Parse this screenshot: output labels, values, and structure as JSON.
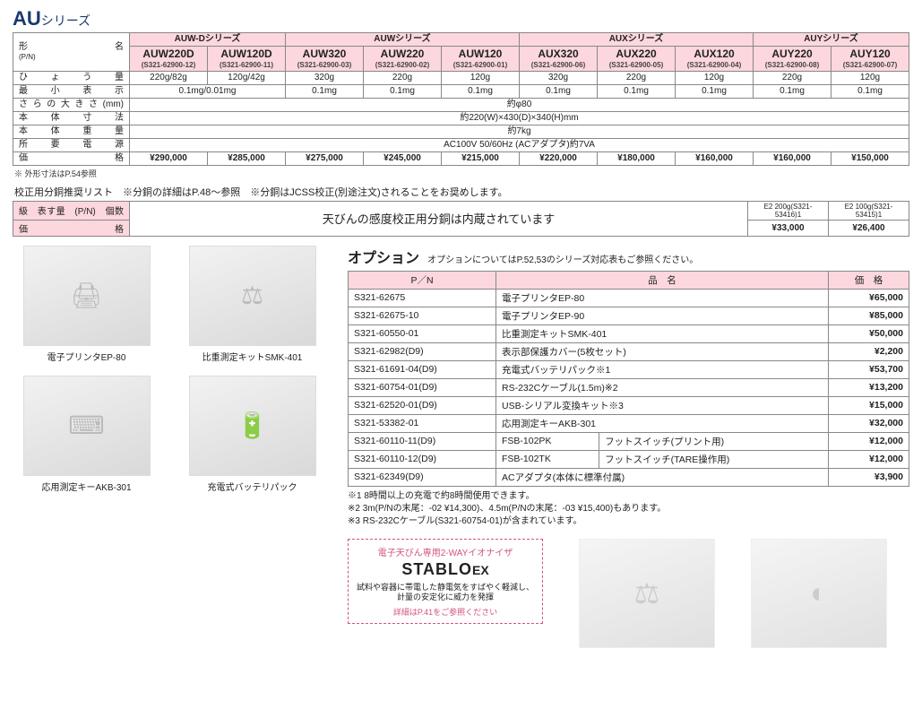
{
  "title": {
    "prefix": "AU",
    "suffix": "シリーズ"
  },
  "spec_table": {
    "row_label_col_width": 130,
    "groups": [
      {
        "label": "AUW-Dシリーズ",
        "span": 2
      },
      {
        "label": "AUWシリーズ",
        "span": 3
      },
      {
        "label": "AUXシリーズ",
        "span": 3
      },
      {
        "label": "AUYシリーズ",
        "span": 2
      }
    ],
    "model_row_label": "形　　　　　名",
    "model_pn_label": "(P/N)",
    "models": [
      {
        "name": "AUW220D",
        "pn": "(S321-62900-12)"
      },
      {
        "name": "AUW120D",
        "pn": "(S321-62900-11)"
      },
      {
        "name": "AUW320",
        "pn": "(S321-62900-03)"
      },
      {
        "name": "AUW220",
        "pn": "(S321-62900-02)"
      },
      {
        "name": "AUW120",
        "pn": "(S321-62900-01)"
      },
      {
        "name": "AUX320",
        "pn": "(S321-62900-06)"
      },
      {
        "name": "AUX220",
        "pn": "(S321-62900-05)"
      },
      {
        "name": "AUX120",
        "pn": "(S321-62900-04)"
      },
      {
        "name": "AUY220",
        "pn": "(S321-62900-08)"
      },
      {
        "name": "AUY120",
        "pn": "(S321-62900-07)"
      }
    ],
    "rows": [
      {
        "label": "ひょう量",
        "cells": [
          {
            "text": "220g/82g",
            "span": 1
          },
          {
            "text": "120g/42g",
            "span": 1
          },
          {
            "text": "320g",
            "span": 1
          },
          {
            "text": "220g",
            "span": 1
          },
          {
            "text": "120g",
            "span": 1
          },
          {
            "text": "320g",
            "span": 1
          },
          {
            "text": "220g",
            "span": 1
          },
          {
            "text": "120g",
            "span": 1
          },
          {
            "text": "220g",
            "span": 1
          },
          {
            "text": "120g",
            "span": 1
          }
        ]
      },
      {
        "label": "最小表示",
        "cells": [
          {
            "text": "0.1mg/0.01mg",
            "span": 2
          },
          {
            "text": "0.1mg",
            "span": 1
          },
          {
            "text": "0.1mg",
            "span": 1
          },
          {
            "text": "0.1mg",
            "span": 1
          },
          {
            "text": "0.1mg",
            "span": 1
          },
          {
            "text": "0.1mg",
            "span": 1
          },
          {
            "text": "0.1mg",
            "span": 1
          },
          {
            "text": "0.1mg",
            "span": 1
          },
          {
            "text": "0.1mg",
            "span": 1
          }
        ]
      },
      {
        "label": "さらの大きさ(mm)",
        "cells": [
          {
            "text": "約φ80",
            "span": 10
          }
        ]
      },
      {
        "label": "本体寸法",
        "cells": [
          {
            "text": "約220(W)×430(D)×340(H)mm",
            "span": 10
          }
        ]
      },
      {
        "label": "本体重量",
        "cells": [
          {
            "text": "約7kg",
            "span": 10
          }
        ]
      },
      {
        "label": "所要電源",
        "cells": [
          {
            "text": "AC100V 50/60Hz (ACアダプタ)約7VA",
            "span": 10
          }
        ]
      }
    ],
    "price_row": {
      "label": "価　　　　　格",
      "values": [
        "¥290,000",
        "¥285,000",
        "¥275,000",
        "¥245,000",
        "¥215,000",
        "¥220,000",
        "¥180,000",
        "¥160,000",
        "¥160,000",
        "¥150,000"
      ]
    },
    "footnote": "※ 外形寸法はP.54参照"
  },
  "weights": {
    "heading": "校正用分銅推奨リスト　※分銅の詳細はP.48～参照　※分銅はJCSS校正(別途注文)されることをお奨めします。",
    "row1_label": "級　表す量　(P/N)　個数",
    "row2_label": "価　　　　　格",
    "center_text": "天びんの感度校正用分銅は内蔵されています",
    "right_items": [
      {
        "spec": "E2 200g(S321-53416)1",
        "price": "¥33,000"
      },
      {
        "spec": "E2 100g(S321-53415)1",
        "price": "¥26,400"
      }
    ]
  },
  "product_images": [
    {
      "caption": "電子プリンタEP-80",
      "icon": "🖨"
    },
    {
      "caption": "比重測定キットSMK-401",
      "icon": "⚖"
    },
    {
      "caption": "応用測定キーAKB-301",
      "icon": "⌨"
    },
    {
      "caption": "充電式バッテリパック",
      "icon": "🔋"
    }
  ],
  "options": {
    "title": "オプション",
    "subtitle": "オプションについてはP.52,53のシリーズ対応表もご参照ください。",
    "headers": {
      "pn": "P／N",
      "name": "品　名",
      "price": "価　格"
    },
    "rows": [
      {
        "pn": "S321-62675",
        "name1": "電子プリンタEP-80",
        "name2": "",
        "price": "¥65,000"
      },
      {
        "pn": "S321-62675-10",
        "name1": "電子プリンタEP-90",
        "name2": "",
        "price": "¥85,000"
      },
      {
        "pn": "S321-60550-01",
        "name1": "比重測定キットSMK-401",
        "name2": "",
        "price": "¥50,000"
      },
      {
        "pn": "S321-62982(D9)",
        "name1": "表示部保護カバー(5枚セット)",
        "name2": "",
        "price": "¥2,200"
      },
      {
        "pn": "S321-61691-04(D9)",
        "name1": "充電式バッテリパック※1",
        "name2": "",
        "price": "¥53,700"
      },
      {
        "pn": "S321-60754-01(D9)",
        "name1": "RS-232Cケーブル(1.5m)※2",
        "name2": "",
        "price": "¥13,200"
      },
      {
        "pn": "S321-62520-01(D9)",
        "name1": "USB-シリアル変換キット※3",
        "name2": "",
        "price": "¥15,000"
      },
      {
        "pn": "S321-53382-01",
        "name1": "応用測定キーAKB-301",
        "name2": "",
        "price": "¥32,000"
      },
      {
        "pn": "S321-60110-11(D9)",
        "name1": "FSB-102PK",
        "name2": "フットスイッチ(プリント用)",
        "price": "¥12,000"
      },
      {
        "pn": "S321-60110-12(D9)",
        "name1": "FSB-102TK",
        "name2": "フットスイッチ(TARE操作用)",
        "price": "¥12,000"
      },
      {
        "pn": "S321-62349(D9)",
        "name1": "ACアダプタ(本体に標準付属)",
        "name2": "",
        "price": "¥3,900"
      }
    ],
    "notes": [
      "※1 8時間以上の充電で約8時間使用できます。",
      "※2 3m(P/Nの末尾：-02 ¥14,300)、4.5m(P/Nの末尾：-03 ¥15,400)もあります。",
      "※3 RS-232Cケーブル(S321-60754-01)が含まれています。"
    ]
  },
  "stablo": {
    "header": "電子天びん専用2-WAYイオナイザ",
    "logo1": "STABLO",
    "logo2": "EX",
    "desc": "試料や容器に帯電した静電気をすばやく軽減し、計量の安定化に威力を発揮",
    "link": "詳細はP.41をご参照ください"
  },
  "colors": {
    "header_pink": "#fcd7de",
    "border": "#888888",
    "brand_blue": "#1a3a6e",
    "stablo_pink": "#d2547a"
  }
}
